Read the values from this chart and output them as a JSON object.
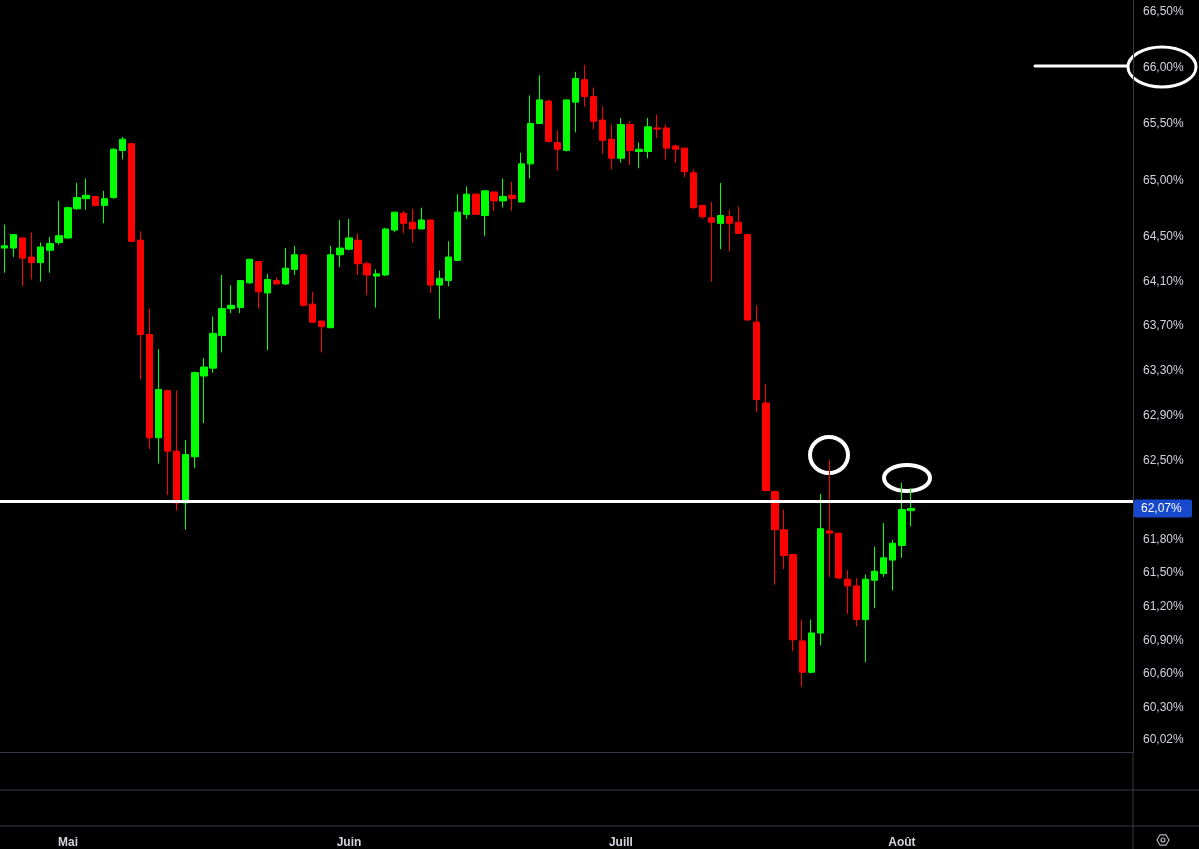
{
  "chart_data": {
    "type": "candlestick",
    "categories": [
      null,
      null,
      null,
      null,
      null,
      null,
      null,
      "Mai",
      null,
      null,
      null,
      null,
      null,
      null,
      null,
      null,
      null,
      null,
      null,
      null,
      null,
      null,
      null,
      null,
      null,
      null,
      null,
      null,
      null,
      null,
      null,
      null,
      null,
      null,
      null,
      null,
      null,
      null,
      "Juin",
      null,
      null,
      null,
      null,
      null,
      null,
      null,
      null,
      null,
      null,
      null,
      null,
      null,
      null,
      null,
      null,
      null,
      null,
      null,
      null,
      null,
      null,
      null,
      null,
      null,
      null,
      null,
      null,
      null,
      "Juill",
      null,
      null,
      null,
      null,
      null,
      null,
      null,
      null,
      null,
      null,
      null,
      null,
      null,
      null,
      null,
      null,
      null,
      null,
      null,
      null,
      null,
      null,
      null,
      null,
      null,
      null,
      null,
      null,
      null,
      null,
      "Août",
      null,
      null,
      null,
      null,
      null,
      null,
      null,
      null,
      null,
      null,
      null,
      null,
      null,
      null,
      null,
      null,
      null,
      null,
      null,
      null,
      null,
      null,
      null,
      null,
      null
    ],
    "ohlc": [
      [
        64.39,
        64.6,
        64.17,
        64.41
      ],
      [
        64.39,
        64.51,
        64.31,
        64.51
      ],
      [
        64.48,
        64.48,
        64.05,
        64.3
      ],
      [
        64.31,
        64.53,
        64.11,
        64.26
      ],
      [
        64.26,
        64.44,
        64.09,
        64.4
      ],
      [
        64.37,
        64.49,
        64.17,
        64.43
      ],
      [
        64.44,
        64.81,
        64.42,
        64.5
      ],
      [
        64.48,
        64.76,
        64.47,
        64.75
      ],
      [
        64.74,
        64.97,
        64.73,
        64.84
      ],
      [
        64.83,
        65.01,
        64.73,
        64.86
      ],
      [
        64.85,
        64.85,
        64.76,
        64.77
      ],
      [
        64.77,
        64.9,
        64.61,
        64.83
      ],
      [
        64.84,
        65.28,
        64.83,
        65.27
      ],
      [
        65.26,
        65.38,
        65.18,
        65.36
      ],
      [
        65.32,
        65.33,
        64.44,
        64.45
      ],
      [
        64.46,
        64.54,
        63.22,
        63.62
      ],
      [
        63.62,
        63.85,
        62.6,
        62.7
      ],
      [
        62.7,
        63.49,
        62.47,
        63.13
      ],
      [
        63.12,
        63.13,
        62.19,
        62.58
      ],
      [
        62.58,
        63.12,
        62.05,
        62.12
      ],
      [
        62.12,
        62.68,
        61.88,
        62.55
      ],
      [
        62.53,
        63.29,
        62.43,
        63.28
      ],
      [
        63.25,
        63.41,
        62.83,
        63.33
      ],
      [
        63.32,
        63.78,
        63.28,
        63.63
      ],
      [
        63.61,
        64.15,
        63.46,
        63.85
      ],
      [
        63.85,
        64.06,
        63.81,
        63.88
      ],
      [
        63.86,
        64.1,
        63.81,
        64.1
      ],
      [
        64.08,
        64.29,
        64.07,
        64.29
      ],
      [
        64.27,
        64.27,
        63.85,
        64.0
      ],
      [
        63.99,
        64.16,
        63.48,
        64.11
      ],
      [
        64.1,
        64.13,
        64.07,
        64.07
      ],
      [
        64.07,
        64.39,
        64.06,
        64.21
      ],
      [
        64.2,
        64.41,
        64.15,
        64.33
      ],
      [
        64.33,
        64.33,
        63.87,
        63.88
      ],
      [
        63.89,
        64.0,
        63.72,
        63.73
      ],
      [
        63.74,
        63.74,
        63.46,
        63.69
      ],
      [
        63.68,
        64.41,
        63.68,
        64.33
      ],
      [
        64.33,
        64.64,
        64.22,
        64.39
      ],
      [
        64.38,
        64.65,
        64.37,
        64.48
      ],
      [
        64.46,
        64.52,
        64.15,
        64.25
      ],
      [
        64.25,
        64.27,
        63.97,
        64.15
      ],
      [
        64.14,
        64.2,
        63.86,
        64.16
      ],
      [
        64.15,
        64.57,
        64.14,
        64.56
      ],
      [
        64.55,
        64.71,
        64.53,
        64.71
      ],
      [
        64.7,
        64.72,
        64.52,
        64.61
      ],
      [
        64.62,
        64.74,
        64.44,
        64.56
      ],
      [
        64.56,
        64.75,
        64.56,
        64.64
      ],
      [
        64.64,
        64.64,
        63.99,
        64.06
      ],
      [
        64.06,
        64.19,
        63.76,
        64.12
      ],
      [
        64.1,
        64.45,
        64.05,
        64.31
      ],
      [
        64.28,
        64.87,
        64.28,
        64.71
      ],
      [
        64.69,
        64.94,
        64.65,
        64.87
      ],
      [
        64.87,
        64.88,
        64.69,
        64.69
      ],
      [
        64.68,
        64.9,
        64.5,
        64.9
      ],
      [
        64.89,
        64.89,
        64.72,
        64.81
      ],
      [
        64.81,
        65.01,
        64.75,
        64.85
      ],
      [
        64.86,
        64.98,
        64.72,
        64.83
      ],
      [
        64.8,
        65.24,
        64.8,
        65.14
      ],
      [
        65.14,
        65.75,
        65.01,
        65.5
      ],
      [
        65.5,
        65.93,
        65.5,
        65.71
      ],
      [
        65.7,
        65.71,
        65.33,
        65.34
      ],
      [
        65.33,
        65.44,
        65.08,
        65.27
      ],
      [
        65.26,
        65.71,
        65.25,
        65.71
      ],
      [
        65.69,
        65.96,
        65.42,
        65.9
      ],
      [
        65.89,
        66.02,
        65.65,
        65.74
      ],
      [
        65.74,
        65.82,
        65.45,
        65.52
      ],
      [
        65.53,
        65.65,
        65.23,
        65.35
      ],
      [
        65.36,
        65.49,
        65.09,
        65.19
      ],
      [
        65.19,
        65.55,
        65.15,
        65.49
      ],
      [
        65.49,
        65.52,
        65.13,
        65.26
      ],
      [
        65.25,
        65.33,
        65.1,
        65.27
      ],
      [
        65.25,
        65.55,
        65.19,
        65.47
      ],
      [
        65.46,
        65.58,
        65.37,
        65.45
      ],
      [
        65.46,
        65.49,
        65.18,
        65.28
      ],
      [
        65.3,
        65.31,
        65.15,
        65.27
      ],
      [
        65.28,
        65.28,
        65.02,
        65.07
      ],
      [
        65.06,
        65.09,
        64.74,
        64.75
      ],
      [
        64.77,
        64.77,
        64.65,
        64.67
      ],
      [
        64.66,
        64.8,
        64.09,
        64.62
      ],
      [
        64.61,
        64.97,
        64.38,
        64.68
      ],
      [
        64.67,
        64.73,
        64.36,
        64.61
      ],
      [
        64.62,
        64.76,
        64.52,
        64.52
      ],
      [
        64.51,
        64.51,
        63.74,
        63.75
      ],
      [
        63.73,
        63.88,
        62.93,
        63.04
      ],
      [
        63.01,
        63.18,
        62.22,
        62.23
      ],
      [
        62.22,
        62.22,
        61.39,
        61.88
      ],
      [
        61.88,
        62.06,
        61.53,
        61.65
      ],
      [
        61.66,
        61.66,
        60.8,
        60.9
      ],
      [
        60.89,
        61.08,
        60.48,
        60.61
      ],
      [
        60.61,
        61.08,
        60.6,
        60.96
      ],
      [
        60.96,
        62.2,
        60.85,
        61.89
      ],
      [
        61.87,
        62.5,
        61.46,
        61.85
      ],
      [
        61.85,
        61.85,
        61.44,
        61.45
      ],
      [
        61.44,
        61.52,
        61.13,
        61.38
      ],
      [
        61.38,
        61.45,
        61.02,
        61.08
      ],
      [
        61.08,
        61.48,
        60.7,
        61.44
      ],
      [
        61.43,
        61.73,
        61.18,
        61.51
      ],
      [
        61.49,
        61.94,
        61.46,
        61.63
      ],
      [
        61.61,
        61.79,
        61.34,
        61.76
      ],
      [
        61.74,
        62.3,
        61.63,
        62.06
      ],
      [
        62.05,
        62.25,
        61.91,
        62.07
      ],
      null,
      null,
      null,
      null,
      null,
      null,
      null,
      null,
      null,
      null,
      null,
      null,
      null,
      null,
      null,
      null,
      null,
      null,
      null,
      null,
      null,
      null,
      null,
      null
    ],
    "colors": [
      "#00ff00",
      "#00ff00",
      "#ff0000",
      "#ff0000",
      "#00ff00",
      "#00ff00",
      "#00ff00",
      "#00ff00",
      "#00ff00",
      "#00ff00",
      "#ff0000",
      "#00ff00",
      "#00ff00",
      "#00ff00",
      "#ff0000",
      "#ff0000",
      "#ff0000",
      "#00ff00",
      "#ff0000",
      "#ff0000",
      "#00ff00",
      "#00ff00",
      "#00ff00",
      "#00ff00",
      "#00ff00",
      "#00ff00",
      "#00ff00",
      "#00ff00",
      "#ff0000",
      "#00ff00",
      "#ff0000",
      "#00ff00",
      "#00ff00",
      "#ff0000",
      "#ff0000",
      "#ff0000",
      "#00ff00",
      "#00ff00",
      "#00ff00",
      "#ff0000",
      "#ff0000",
      "#00ff00",
      "#00ff00",
      "#00ff00",
      "#ff0000",
      "#ff0000",
      "#00ff00",
      "#ff0000",
      "#00ff00",
      "#00ff00",
      "#00ff00",
      "#00ff00",
      "#ff0000",
      "#00ff00",
      "#ff0000",
      "#00ff00",
      "#ff0000",
      "#00ff00",
      "#00ff00",
      "#00ff00",
      "#ff0000",
      "#ff0000",
      "#00ff00",
      "#00ff00",
      "#ff0000",
      "#ff0000",
      "#ff0000",
      "#ff0000",
      "#00ff00",
      "#ff0000",
      "#00ff00",
      "#00ff00",
      "#ff0000",
      "#ff0000",
      "#ff0000",
      "#ff0000",
      "#ff0000",
      "#ff0000",
      "#ff0000",
      "#00ff00",
      "#ff0000",
      "#ff0000",
      "#ff0000",
      "#ff0000",
      "#ff0000",
      "#ff0000",
      "#ff0000",
      "#ff0000",
      "#ff0000",
      "#00ff00",
      "#00ff00",
      "#ff0000",
      "#ff0000",
      "#ff0000",
      "#ff0000",
      "#00ff00",
      "#00ff00",
      "#00ff00",
      "#00ff00",
      "#00ff00",
      "#00ff00",
      null,
      null,
      null,
      null,
      null,
      null,
      null,
      null,
      null,
      null,
      null,
      null,
      null,
      null,
      null,
      null,
      null,
      null,
      null,
      null,
      null,
      null,
      null,
      null
    ],
    "ylim": [
      59.9,
      66.6
    ],
    "yticks": [
      {
        "value": 60.02,
        "label": "60,02%"
      },
      {
        "value": 60.3,
        "label": "60,30%"
      },
      {
        "value": 60.6,
        "label": "60,60%"
      },
      {
        "value": 60.9,
        "label": "60,90%"
      },
      {
        "value": 61.2,
        "label": "61,20%"
      },
      {
        "value": 61.5,
        "label": "61,50%"
      },
      {
        "value": 61.8,
        "label": "61,80%"
      },
      {
        "value": 62.5,
        "label": "62,50%"
      },
      {
        "value": 62.9,
        "label": "62,90%"
      },
      {
        "value": 63.3,
        "label": "63,30%"
      },
      {
        "value": 63.7,
        "label": "63,70%"
      },
      {
        "value": 64.1,
        "label": "64,10%"
      },
      {
        "value": 64.5,
        "label": "64,50%"
      },
      {
        "value": 65,
        "label": "65,00%"
      },
      {
        "value": 65.5,
        "label": "65,50%"
      },
      {
        "value": 66,
        "label": "66,00%"
      },
      {
        "value": 66.5,
        "label": "66,50%"
      }
    ],
    "ref_lines": [
      {
        "axis": "y",
        "value": 62.13,
        "color": "#ffffff"
      }
    ],
    "annotations": [
      "62,07%"
    ]
  }
}
